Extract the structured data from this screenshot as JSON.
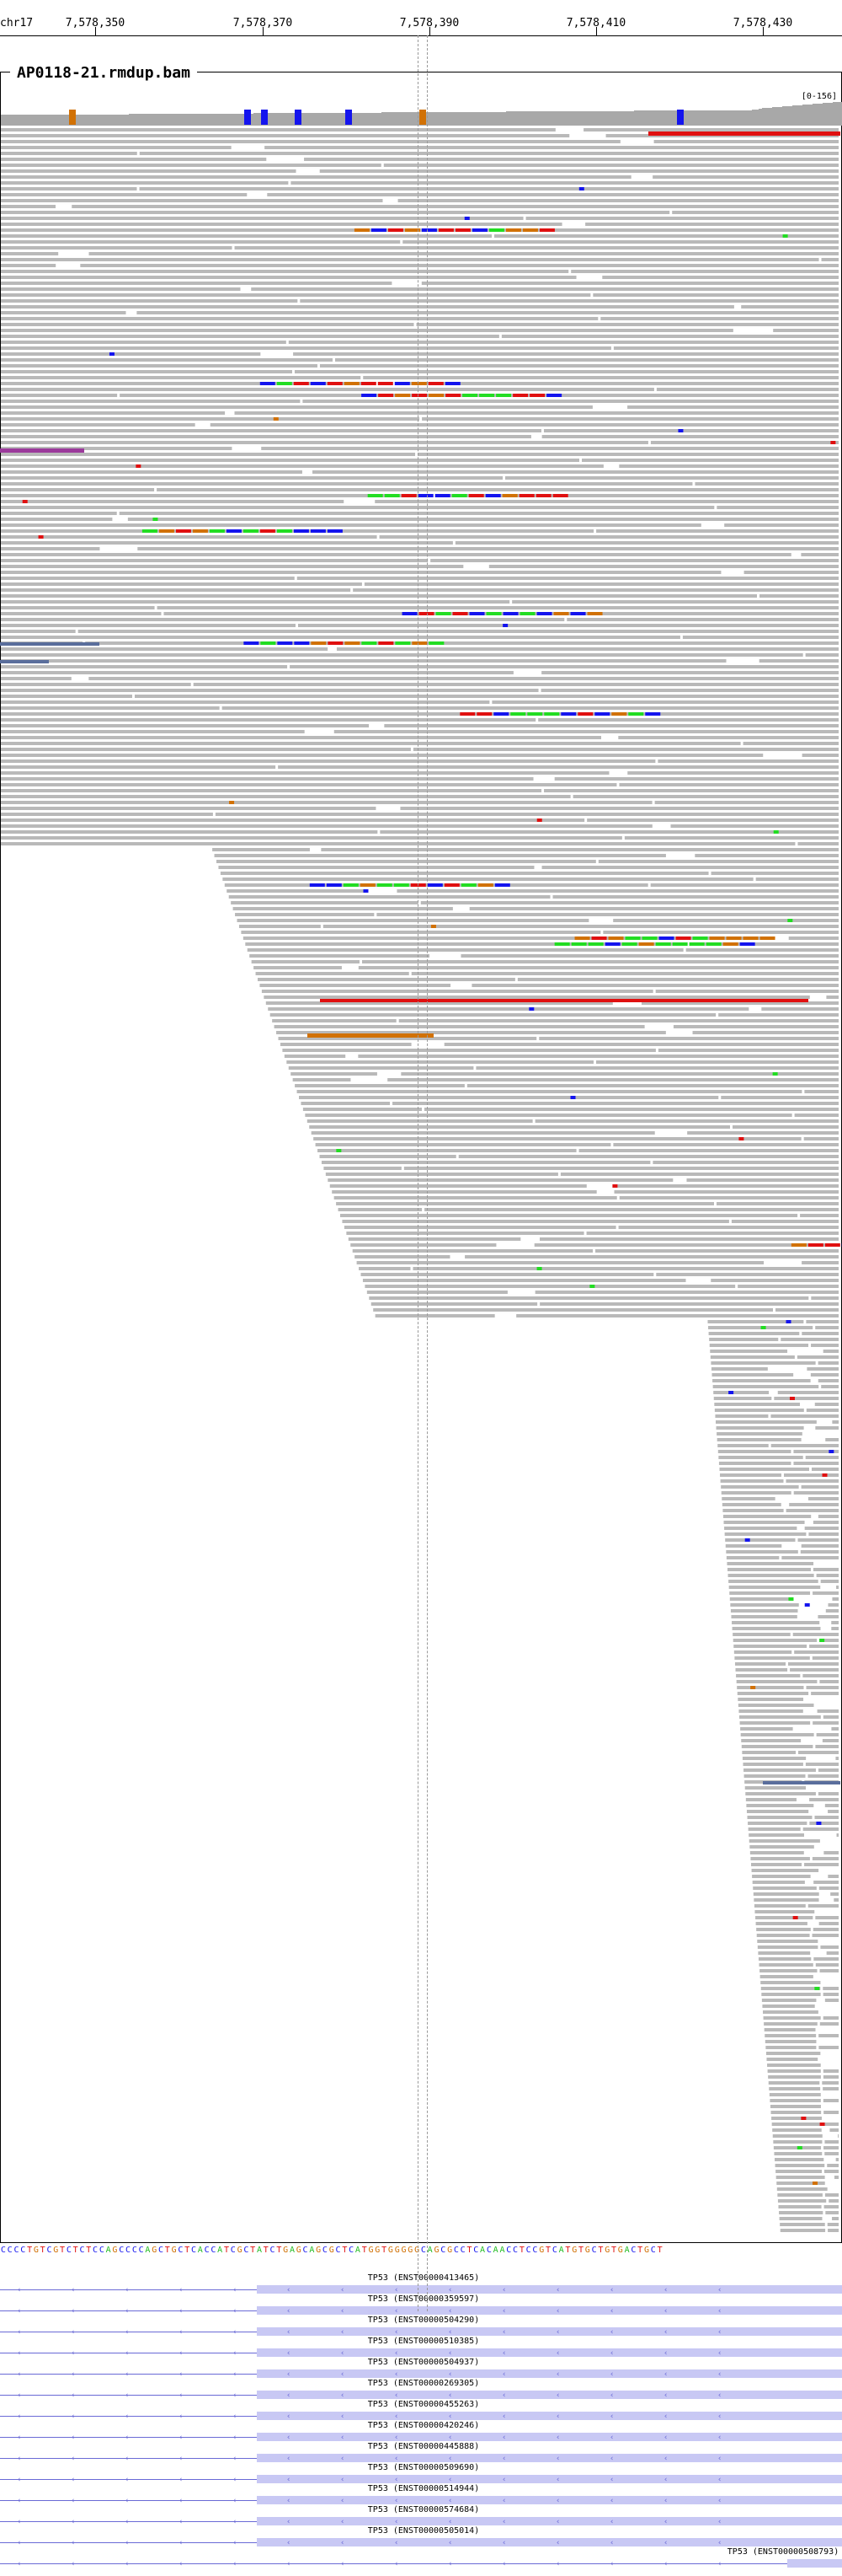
{
  "ruler": {
    "chromosome": "chr17",
    "ticks": [
      "7,578,350",
      "7,578,370",
      "7,578,390",
      "7,578,410",
      "7,578,430"
    ]
  },
  "track": {
    "name": "AP0118-21.rmdup.bam",
    "coverage_range": "[0-156]"
  },
  "colors": {
    "read": "#b9b9b9",
    "coverage": "#a8a8a8",
    "mismatch_A": "#22dd22",
    "mismatch_C": "#1414ee",
    "mismatch_G": "#d17105",
    "mismatch_T": "#e01010",
    "soft_clip_purple": "#9b3a9b",
    "soft_clip_blue": "#5a6e9c",
    "transcript": "#6a6ad6"
  },
  "sequence": "CCCCTGTCGTCTCTCCAGCCCCAGCTGCTCACCATCGCTATCTGAGCAGCGCTCATGGTGGGGGCAGCGCCTCACAACCTCCGTCATGTGCTGTGACTGCT",
  "transcripts": [
    "TP53 (ENST00000413465)",
    "TP53 (ENST00000359597)",
    "TP53 (ENST00000504290)",
    "TP53 (ENST00000510385)",
    "TP53 (ENST00000504937)",
    "TP53 (ENST00000269305)",
    "TP53 (ENST00000455263)",
    "TP53 (ENST00000420246)",
    "TP53 (ENST00000445888)",
    "TP53 (ENST00000509690)",
    "TP53 (ENST00000514944)",
    "TP53 (ENST00000574684)",
    "TP53 (ENST00000505014)",
    "TP53 (ENST00000508793)"
  ]
}
